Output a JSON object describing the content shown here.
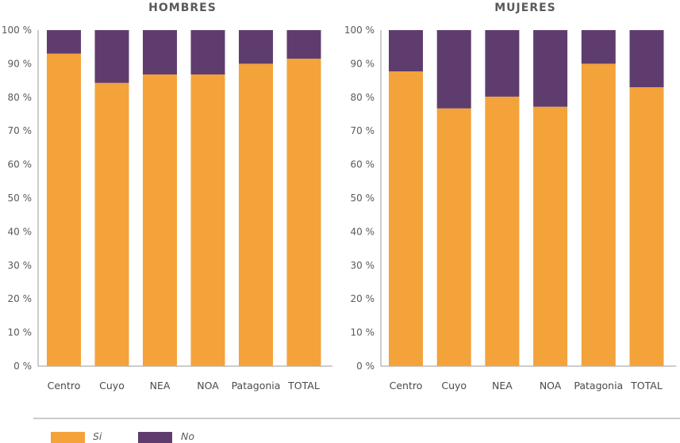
{
  "chart_data": {
    "type": "bar",
    "stacked": true,
    "percent_stacked": true,
    "categories": [
      "Centro",
      "Cuyo",
      "NEA",
      "NOA",
      "Patagonia",
      "TOTAL"
    ],
    "ylim": [
      0,
      100
    ],
    "yticks": [
      0,
      10,
      20,
      30,
      40,
      50,
      60,
      70,
      80,
      90,
      100
    ],
    "ytick_labels": [
      "0 %",
      "10 %",
      "20 %",
      "30 %",
      "40 %",
      "50 %",
      "60 %",
      "70 %",
      "80 %",
      "90 %",
      "100 %"
    ],
    "grid": false,
    "legend_position": "bottom-left",
    "series_styles": [
      {
        "name": "Si",
        "color": "#f4a23a"
      },
      {
        "name": "No",
        "color": "#5e3d6e"
      }
    ],
    "panels": [
      {
        "title": "HOMBRES",
        "series": [
          {
            "name": "Si",
            "values": [
              93,
              84.3,
              86.8,
              86.8,
              90,
              91.5
            ]
          },
          {
            "name": "No",
            "values": [
              7,
              15.7,
              13.2,
              13.2,
              10,
              8.5
            ]
          }
        ]
      },
      {
        "title": "MUJERES",
        "series": [
          {
            "name": "Si",
            "values": [
              87.7,
              76.7,
              80.2,
              77.2,
              90,
              83
            ]
          },
          {
            "name": "No",
            "values": [
              12.3,
              23.3,
              19.8,
              22.8,
              10,
              17
            ]
          }
        ]
      }
    ]
  }
}
